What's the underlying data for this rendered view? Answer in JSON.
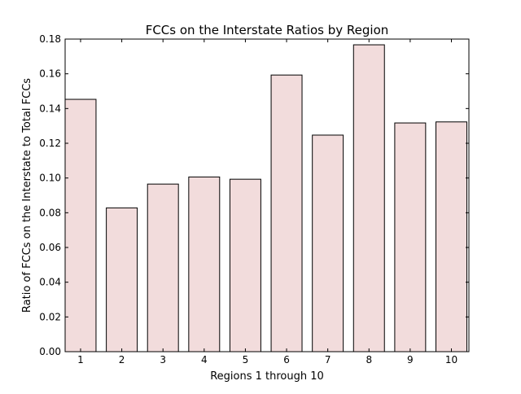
{
  "chart_data": {
    "type": "bar",
    "title": "FCCs on the Interstate Ratios by Region",
    "xlabel": "Regions 1 through 10",
    "ylabel": "Ratio of FCCs on the Interstate to Total FCCs",
    "categories": [
      "1",
      "2",
      "3",
      "4",
      "5",
      "6",
      "7",
      "8",
      "9",
      "10"
    ],
    "values": [
      0.1453,
      0.0828,
      0.0965,
      0.1006,
      0.0993,
      0.1593,
      0.1247,
      0.1767,
      0.1317,
      0.1323
    ],
    "ylim": [
      0,
      0.18
    ],
    "yticks": [
      "0.00",
      "0.02",
      "0.04",
      "0.06",
      "0.08",
      "0.10",
      "0.12",
      "0.14",
      "0.16",
      "0.18"
    ],
    "grid": false,
    "legend": "none",
    "colors": {
      "bar_fill": "#f2dcdc",
      "bar_edge": "#000000",
      "axis": "#000000"
    }
  }
}
